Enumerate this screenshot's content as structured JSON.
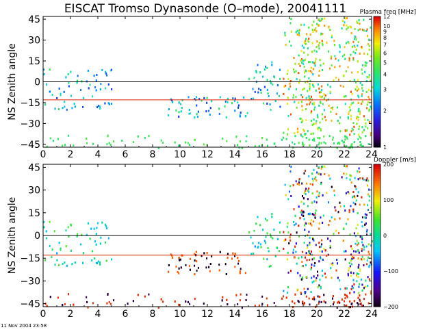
{
  "title": "EISCAT Tromso Dynasonde (O–mode),  20041111",
  "footer_timestamp": "11 Nov 2004 23:58",
  "colors": {
    "zero_line": "#000000",
    "reference_line": "#d62000",
    "frame": "#000000"
  },
  "chart_data": [
    {
      "type": "heatmap",
      "panel": "top",
      "ylabel": "NS Zenith angle",
      "xlim": [
        0,
        24
      ],
      "ylim": [
        -47,
        47
      ],
      "x_ticks": [
        "0",
        "2",
        "4",
        "6",
        "8",
        "10",
        "12",
        "14",
        "16",
        "18",
        "20",
        "22",
        "24"
      ],
      "y_ticks": [
        "−45",
        "−30",
        "−15",
        "0",
        "15",
        "30",
        "45"
      ],
      "y_tick_values": [
        -45,
        -30,
        -15,
        0,
        15,
        30,
        45
      ],
      "reference_lines": [
        0,
        -13
      ],
      "colorbar": {
        "title": "Plasma freq [MHz]",
        "scale": "log",
        "range": [
          1,
          12
        ],
        "tick_labels": [
          "12",
          "10",
          "9",
          "8",
          "7",
          "6",
          "5",
          "4",
          "3",
          "2",
          "1"
        ],
        "tick_values": [
          12,
          10,
          9,
          8,
          7,
          6,
          5,
          4,
          3,
          2,
          1
        ]
      }
    },
    {
      "type": "heatmap",
      "panel": "bottom",
      "ylabel": "NS Zenith angle",
      "xlim": [
        0,
        24
      ],
      "ylim": [
        -47,
        47
      ],
      "x_ticks": [
        "0",
        "2",
        "4",
        "6",
        "8",
        "10",
        "12",
        "14",
        "16",
        "18",
        "20",
        "22",
        "24"
      ],
      "y_ticks": [
        "−45",
        "−30",
        "−15",
        "0",
        "15",
        "30",
        "45"
      ],
      "y_tick_values": [
        -45,
        -30,
        -15,
        0,
        15,
        30,
        45
      ],
      "reference_lines": [
        0,
        -13
      ],
      "colorbar": {
        "title": "Doppler [m/s]",
        "scale": "linear",
        "range": [
          -200,
          200
        ],
        "tick_labels": [
          "200",
          "100",
          "0",
          "−100",
          "−200"
        ],
        "tick_values": [
          200,
          100,
          0,
          -100,
          -200
        ]
      }
    }
  ]
}
